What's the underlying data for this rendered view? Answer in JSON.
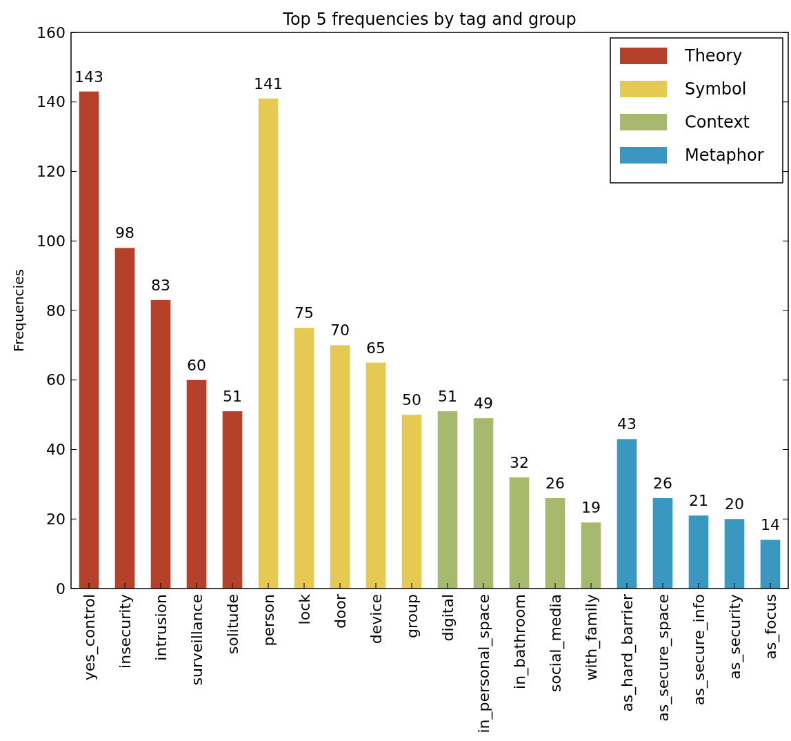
{
  "chart_data": {
    "type": "bar",
    "title": "Top 5 frequencies by tag and group",
    "ylabel": "Frequencies",
    "categories": [
      "yes_control",
      "insecurity",
      "intrusion",
      "surveillance",
      "solitude",
      "person",
      "lock",
      "door",
      "device",
      "group",
      "digital",
      "in_personal_space",
      "in_bathroom",
      "social_media",
      "with_family",
      "as_hard_barrier",
      "as_secure_space",
      "as_secure_info",
      "as_security",
      "as_focus"
    ],
    "series": [
      {
        "name": "Theory",
        "color": "#b5412a",
        "values": [
          143,
          98,
          83,
          60,
          51,
          null,
          null,
          null,
          null,
          null,
          null,
          null,
          null,
          null,
          null,
          null,
          null,
          null,
          null,
          null
        ]
      },
      {
        "name": "Symbol",
        "color": "#e5c953",
        "values": [
          null,
          null,
          null,
          null,
          null,
          141,
          75,
          70,
          65,
          50,
          null,
          null,
          null,
          null,
          null,
          null,
          null,
          null,
          null,
          null
        ]
      },
      {
        "name": "Context",
        "color": "#a6b96c",
        "values": [
          null,
          null,
          null,
          null,
          null,
          null,
          null,
          null,
          null,
          null,
          51,
          49,
          32,
          26,
          19,
          null,
          null,
          null,
          null,
          null
        ]
      },
      {
        "name": "Metaphor",
        "color": "#3a97c0",
        "values": [
          null,
          null,
          null,
          null,
          null,
          null,
          null,
          null,
          null,
          null,
          null,
          null,
          null,
          null,
          null,
          43,
          26,
          21,
          20,
          14
        ]
      }
    ],
    "ylim": [
      0,
      160
    ],
    "yticks": [
      0,
      20,
      40,
      60,
      80,
      100,
      120,
      140,
      160
    ],
    "data_labels": true,
    "legend": "top right"
  }
}
